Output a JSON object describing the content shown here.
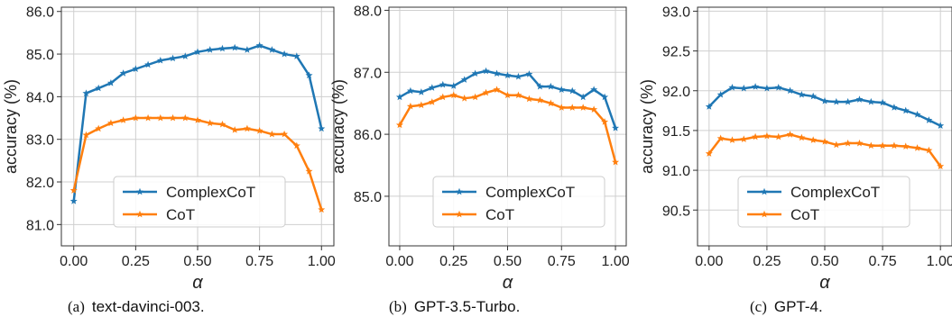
{
  "chart_data": [
    {
      "type": "line",
      "caption_tag": "(a)",
      "caption_name": "text-davinci-003.",
      "xlabel": "α",
      "ylabel": "accuracy (%)",
      "xlim": [
        -0.05,
        1.05
      ],
      "ylim": [
        80.5,
        86.1
      ],
      "xticks": [
        "0.00",
        "0.25",
        "0.50",
        "0.75",
        "1.00"
      ],
      "xtick_values": [
        0,
        0.25,
        0.5,
        0.75,
        1.0
      ],
      "yticks": [
        "81.0",
        "82.0",
        "83.0",
        "84.0",
        "85.0",
        "86.0"
      ],
      "ytick_values": [
        81,
        82,
        83,
        84,
        85,
        86
      ],
      "grid": true,
      "legend": "lower-center",
      "x": [
        0,
        0.05,
        0.1,
        0.15,
        0.2,
        0.25,
        0.3,
        0.35,
        0.4,
        0.45,
        0.5,
        0.55,
        0.6,
        0.65,
        0.7,
        0.75,
        0.8,
        0.85,
        0.9,
        0.95,
        1.0
      ],
      "series": [
        {
          "name": "ComplexCoT",
          "color": "#1f77b4",
          "values": [
            81.55,
            84.08,
            84.2,
            84.32,
            84.55,
            84.65,
            84.75,
            84.85,
            84.9,
            84.95,
            85.05,
            85.1,
            85.13,
            85.15,
            85.1,
            85.2,
            85.1,
            85.0,
            84.95,
            84.5,
            83.25
          ]
        },
        {
          "name": "CoT",
          "color": "#ff7f0e",
          "values": [
            81.8,
            83.1,
            83.25,
            83.38,
            83.45,
            83.5,
            83.5,
            83.5,
            83.5,
            83.5,
            83.45,
            83.38,
            83.35,
            83.22,
            83.25,
            83.2,
            83.12,
            83.12,
            82.85,
            82.25,
            81.35
          ]
        }
      ]
    },
    {
      "type": "line",
      "caption_tag": "(b)",
      "caption_name": "GPT-3.5-Turbo.",
      "xlabel": "α",
      "ylabel": "accuracy (%)",
      "xlim": [
        -0.05,
        1.05
      ],
      "ylim": [
        84.2,
        88.05
      ],
      "xticks": [
        "0.00",
        "0.25",
        "0.50",
        "0.75",
        "1.00"
      ],
      "xtick_values": [
        0,
        0.25,
        0.5,
        0.75,
        1.0
      ],
      "yticks": [
        "85.0",
        "86.0",
        "87.0",
        "88.0"
      ],
      "ytick_values": [
        85,
        86,
        87,
        88
      ],
      "grid": true,
      "legend": "lower-center",
      "x": [
        0,
        0.05,
        0.1,
        0.15,
        0.2,
        0.25,
        0.3,
        0.35,
        0.4,
        0.45,
        0.5,
        0.55,
        0.6,
        0.65,
        0.7,
        0.75,
        0.8,
        0.85,
        0.9,
        0.95,
        1.0
      ],
      "series": [
        {
          "name": "ComplexCoT",
          "color": "#1f77b4",
          "values": [
            86.6,
            86.7,
            86.68,
            86.75,
            86.8,
            86.78,
            86.88,
            86.98,
            87.02,
            86.98,
            86.95,
            86.93,
            86.97,
            86.77,
            86.77,
            86.72,
            86.7,
            86.6,
            86.72,
            86.6,
            86.1
          ]
        },
        {
          "name": "CoT",
          "color": "#ff7f0e",
          "values": [
            86.15,
            86.45,
            86.47,
            86.52,
            86.6,
            86.63,
            86.58,
            86.6,
            86.67,
            86.72,
            86.63,
            86.63,
            86.57,
            86.55,
            86.5,
            86.43,
            86.43,
            86.43,
            86.4,
            86.2,
            85.55
          ]
        }
      ]
    },
    {
      "type": "line",
      "caption_tag": "(c)",
      "caption_name": "GPT-4.",
      "xlabel": "α",
      "ylabel": "accuracy (%)",
      "xlim": [
        -0.05,
        1.05
      ],
      "ylim": [
        90.05,
        93.05
      ],
      "xticks": [
        "0.00",
        "0.25",
        "0.50",
        "0.75",
        "1.00"
      ],
      "xtick_values": [
        0,
        0.25,
        0.5,
        0.75,
        1.0
      ],
      "yticks": [
        "90.5",
        "91.0",
        "91.5",
        "92.0",
        "92.5",
        "93.0"
      ],
      "ytick_values": [
        90.5,
        91.0,
        91.5,
        92.0,
        92.5,
        93.0
      ],
      "grid": true,
      "legend": "lower-center",
      "x": [
        0,
        0.05,
        0.1,
        0.15,
        0.2,
        0.25,
        0.3,
        0.35,
        0.4,
        0.45,
        0.5,
        0.55,
        0.6,
        0.65,
        0.7,
        0.75,
        0.8,
        0.85,
        0.9,
        0.95,
        1.0
      ],
      "series": [
        {
          "name": "ComplexCoT",
          "color": "#1f77b4",
          "values": [
            91.8,
            91.95,
            92.04,
            92.03,
            92.05,
            92.03,
            92.04,
            92.0,
            91.95,
            91.93,
            91.87,
            91.86,
            91.86,
            91.89,
            91.86,
            91.85,
            91.79,
            91.75,
            91.7,
            91.63,
            91.56
          ]
        },
        {
          "name": "CoT",
          "color": "#ff7f0e",
          "values": [
            91.21,
            91.4,
            91.38,
            91.39,
            91.42,
            91.43,
            91.42,
            91.45,
            91.41,
            91.38,
            91.36,
            91.32,
            91.34,
            91.34,
            91.31,
            91.31,
            91.31,
            91.3,
            91.28,
            91.25,
            91.05
          ]
        }
      ]
    }
  ]
}
